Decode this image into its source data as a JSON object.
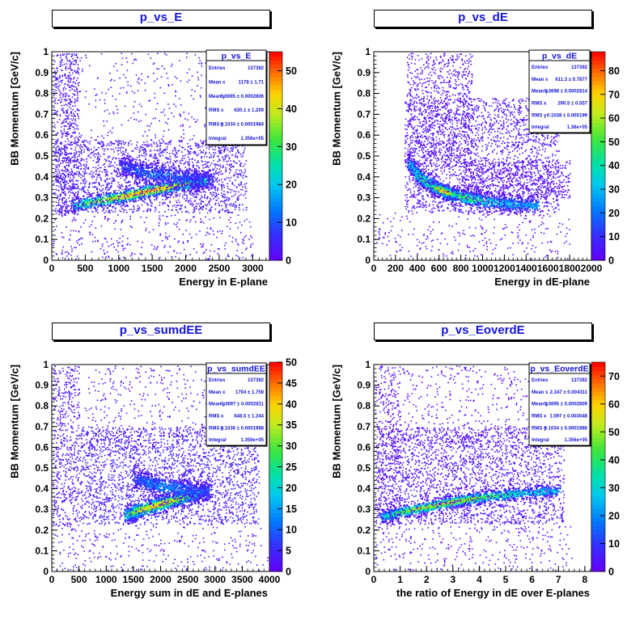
{
  "chart_data": [
    {
      "type": "heatmap",
      "title": "p_vs_E",
      "xlabel": "Energy in E-plane",
      "ylabel": "BB Momentum [GeV/c]",
      "xlim": [
        0,
        3250
      ],
      "ylim": [
        0,
        1
      ],
      "x_ticks": [
        "0",
        "500",
        "1000",
        "1500",
        "2000",
        "2500",
        "3000"
      ],
      "x_tick_values": [
        0,
        500,
        1000,
        1500,
        2000,
        2500,
        3000
      ],
      "y_ticks": [
        "0",
        "0.1",
        "0.2",
        "0.3",
        "0.4",
        "0.5",
        "0.6",
        "0.7",
        "0.8",
        "0.9",
        "1"
      ],
      "z_ticks": [
        "0",
        "10",
        "20",
        "30",
        "40",
        "50"
      ],
      "z_max": 55,
      "stats": {
        "name": "p_vs_E",
        "rows": [
          {
            "label": "Entries",
            "value": "137392"
          },
          {
            "label": "Mean x",
            "value": "1178 ± 1.71"
          },
          {
            "label": "Mean y",
            "value": "0.3695 ± 0.0002806"
          },
          {
            "label": "RMS x",
            "value": "630.1 ± 1.209"
          },
          {
            "label": "RMS y",
            "value": "0.1034 ± 0.0001984"
          },
          {
            "label": "Integral",
            "value": "1.356e+05"
          }
        ]
      },
      "features": [
        {
          "kind": "band",
          "points": [
            [
              300,
              0.265
            ],
            [
              1000,
              0.305
            ],
            [
              1500,
              0.34
            ],
            [
              2000,
              0.37
            ],
            [
              2300,
              0.385
            ]
          ],
          "width": 0.016,
          "peak": 52,
          "count": 1400
        },
        {
          "kind": "band",
          "points": [
            [
              1000,
              0.46
            ],
            [
              1400,
              0.42
            ],
            [
              1900,
              0.4
            ],
            [
              2400,
              0.39
            ]
          ],
          "width": 0.025,
          "peak": 14,
          "count": 800
        },
        {
          "kind": "blob",
          "x": [
            50,
            2900
          ],
          "y": [
            0.23,
            0.58
          ],
          "count": 2100,
          "value": [
            1,
            6
          ]
        },
        {
          "kind": "blob",
          "x": [
            20,
            400
          ],
          "y": [
            0.22,
            1.0
          ],
          "count": 650,
          "value": [
            1,
            5
          ]
        },
        {
          "kind": "blob",
          "x": [
            0,
            3000
          ],
          "y": [
            0.0,
            0.22
          ],
          "count": 330,
          "value": [
            1,
            3
          ]
        },
        {
          "kind": "blob",
          "x": [
            200,
            2700
          ],
          "y": [
            0.55,
            1.0
          ],
          "count": 330,
          "value": [
            1,
            3
          ]
        }
      ]
    },
    {
      "type": "heatmap",
      "title": "p_vs_dE",
      "xlabel": "Energy in dE-plane",
      "ylabel": "BB Momentum [GeV/c]",
      "xlim": [
        0,
        2000
      ],
      "ylim": [
        0,
        1
      ],
      "x_ticks": [
        "0",
        "200",
        "400",
        "600",
        "800",
        "1000",
        "1200",
        "1400",
        "1600",
        "1800",
        "2000"
      ],
      "x_tick_values": [
        0,
        200,
        400,
        600,
        800,
        1000,
        1200,
        1400,
        1600,
        1800,
        2000
      ],
      "y_ticks": [
        "0",
        "0.1",
        "0.2",
        "0.3",
        "0.4",
        "0.5",
        "0.6",
        "0.7",
        "0.8",
        "0.9",
        "1"
      ],
      "z_ticks": [
        "0",
        "10",
        "20",
        "30",
        "40",
        "50",
        "60",
        "70",
        "80"
      ],
      "z_max": 88,
      "stats": {
        "name": "p_vs_dE",
        "rows": [
          {
            "label": "Entries",
            "value": "137392"
          },
          {
            "label": "Mean x",
            "value": "611.3 ± 0.7877"
          },
          {
            "label": "Mean y",
            "value": "0.3698 ± 0.0002814"
          },
          {
            "label": "RMS x",
            "value": "290.5 ± 0.557"
          },
          {
            "label": "RMS y",
            "value": "0.1038 ± 0.000199"
          },
          {
            "label": "Integral",
            "value": "1.36e+05"
          }
        ]
      },
      "features": [
        {
          "kind": "band",
          "points": [
            [
              320,
              0.47
            ],
            [
              420,
              0.4
            ],
            [
              550,
              0.355
            ],
            [
              700,
              0.32
            ],
            [
              900,
              0.295
            ],
            [
              1200,
              0.275
            ],
            [
              1500,
              0.265
            ]
          ],
          "width": 0.018,
          "peak": 60,
          "count": 1800
        },
        {
          "kind": "band",
          "points": [
            [
              520,
              0.36
            ],
            [
              650,
              0.33
            ],
            [
              760,
              0.315
            ]
          ],
          "width": 0.012,
          "peak": 84,
          "count": 450
        },
        {
          "kind": "blob",
          "x": [
            280,
            1700
          ],
          "y": [
            0.23,
            0.78
          ],
          "count": 2300,
          "value": [
            1,
            8
          ]
        },
        {
          "kind": "blob",
          "x": [
            300,
            900
          ],
          "y": [
            0.45,
            1.0
          ],
          "count": 800,
          "value": [
            1,
            5
          ]
        },
        {
          "kind": "blob",
          "x": [
            0,
            1800
          ],
          "y": [
            0.0,
            0.23
          ],
          "count": 260,
          "value": [
            1,
            4
          ]
        },
        {
          "kind": "blob",
          "x": [
            800,
            1800
          ],
          "y": [
            0.3,
            0.48
          ],
          "count": 600,
          "value": [
            1,
            4
          ]
        }
      ]
    },
    {
      "type": "heatmap",
      "title": "p_vs_sumdEE",
      "xlabel": "Energy sum in dE and E-planes",
      "ylabel": "BB Momentum [GeV/c]",
      "xlim": [
        0,
        4000
      ],
      "ylim": [
        0,
        1
      ],
      "x_ticks": [
        "0",
        "500",
        "1000",
        "1500",
        "2000",
        "2500",
        "3000",
        "3500",
        "4000"
      ],
      "x_tick_values": [
        0,
        500,
        1000,
        1500,
        2000,
        2500,
        3000,
        3500,
        4000
      ],
      "y_ticks": [
        "0",
        "0.1",
        "0.2",
        "0.3",
        "0.4",
        "0.5",
        "0.6",
        "0.7",
        "0.8",
        "0.9",
        "1"
      ],
      "z_ticks": [
        "0",
        "5",
        "10",
        "15",
        "20",
        "25",
        "30",
        "35",
        "40",
        "45",
        "50"
      ],
      "z_max": 50,
      "stats": {
        "name": "p_vs_sumdEE",
        "rows": [
          {
            "label": "Entries",
            "value": "137392"
          },
          {
            "label": "Mean x",
            "value": "1794 ± 1.759"
          },
          {
            "label": "Mean y",
            "value": "0.3697 ± 0.0002811"
          },
          {
            "label": "RMS x",
            "value": "648.5 ± 1.244"
          },
          {
            "label": "RMS y",
            "value": "0.1036 ± 0.0001988"
          },
          {
            "label": "Integral",
            "value": "1.359e+05"
          }
        ]
      },
      "features": [
        {
          "kind": "band",
          "points": [
            [
              1350,
              0.275
            ],
            [
              1600,
              0.3
            ],
            [
              2000,
              0.33
            ],
            [
              2400,
              0.36
            ],
            [
              2800,
              0.39
            ]
          ],
          "width": 0.018,
          "peak": 45,
          "count": 1300
        },
        {
          "kind": "band",
          "points": [
            [
              1500,
              0.45
            ],
            [
              1900,
              0.42
            ],
            [
              2400,
              0.4
            ],
            [
              2900,
              0.39
            ]
          ],
          "width": 0.025,
          "peak": 16,
          "count": 800
        },
        {
          "kind": "blob",
          "x": [
            500,
            3800
          ],
          "y": [
            0.23,
            0.7
          ],
          "count": 2500,
          "value": [
            1,
            6
          ]
        },
        {
          "kind": "blob",
          "x": [
            0,
            500
          ],
          "y": [
            0.22,
            1.0
          ],
          "count": 550,
          "value": [
            1,
            4
          ]
        },
        {
          "kind": "blob",
          "x": [
            0,
            4000
          ],
          "y": [
            0.0,
            0.22
          ],
          "count": 300,
          "value": [
            1,
            3
          ]
        },
        {
          "kind": "blob",
          "x": [
            600,
            3500
          ],
          "y": [
            0.6,
            1.0
          ],
          "count": 400,
          "value": [
            1,
            3
          ]
        }
      ]
    },
    {
      "type": "heatmap",
      "title": "p_vs_EoverdE",
      "xlabel": "the ratio of Energy in dE over E-planes",
      "ylabel": "BB Momentum [GeV/c]",
      "xlim": [
        0,
        8.25
      ],
      "ylim": [
        0,
        1
      ],
      "x_ticks": [
        "0",
        "1",
        "2",
        "3",
        "4",
        "5",
        "6",
        "7",
        "8"
      ],
      "x_tick_values": [
        0,
        1,
        2,
        3,
        4,
        5,
        6,
        7,
        8
      ],
      "y_ticks": [
        "0",
        "0.1",
        "0.2",
        "0.3",
        "0.4",
        "0.5",
        "0.6",
        "0.7",
        "0.8",
        "0.9",
        "1"
      ],
      "z_ticks": [
        "0",
        "10",
        "20",
        "30",
        "40",
        "50",
        "60",
        "70"
      ],
      "z_max": 75,
      "stats": {
        "name": "p_vs_EoverdE",
        "rows": [
          {
            "label": "Entries",
            "value": "137392"
          },
          {
            "label": "Mean x",
            "value": "2.347 ± 0.004311"
          },
          {
            "label": "Mean y",
            "value": "0.3695 ± 0.0002809"
          },
          {
            "label": "RMS x",
            "value": "1.597 ± 0.003048"
          },
          {
            "label": "RMS y",
            "value": "0.1034 ± 0.0001986"
          },
          {
            "label": "Integral",
            "value": "1.356e+05"
          }
        ]
      },
      "features": [
        {
          "kind": "band",
          "points": [
            [
              0.3,
              0.265
            ],
            [
              1.0,
              0.29
            ],
            [
              2.0,
              0.315
            ],
            [
              3.0,
              0.34
            ],
            [
              4.0,
              0.36
            ],
            [
              5.5,
              0.38
            ],
            [
              7.0,
              0.395
            ]
          ],
          "width": 0.014,
          "peak": 60,
          "count": 1600
        },
        {
          "kind": "blob",
          "x": [
            0.1,
            7.2
          ],
          "y": [
            0.23,
            0.7
          ],
          "count": 2600,
          "value": [
            1,
            6
          ]
        },
        {
          "kind": "blob",
          "x": [
            0,
            1.0
          ],
          "y": [
            0.22,
            1.0
          ],
          "count": 300,
          "value": [
            1,
            3
          ]
        },
        {
          "kind": "blob",
          "x": [
            0,
            7.5
          ],
          "y": [
            0.0,
            0.22
          ],
          "count": 300,
          "value": [
            1,
            3
          ]
        },
        {
          "kind": "blob",
          "x": [
            0.5,
            6.0
          ],
          "y": [
            0.6,
            1.0
          ],
          "count": 400,
          "value": [
            1,
            3
          ]
        }
      ]
    }
  ]
}
